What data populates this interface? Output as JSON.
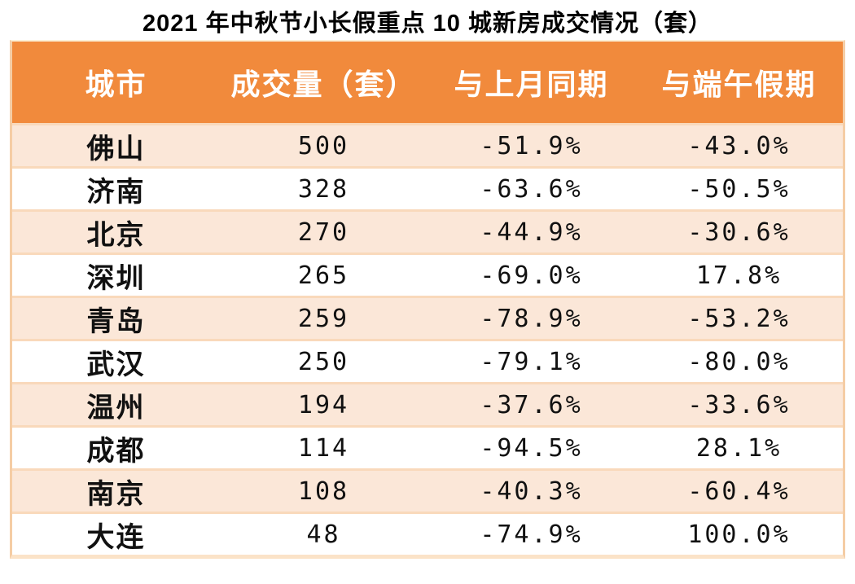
{
  "title": "2021 年中秋节小长假重点 10 城新房成交情况（套）",
  "table": {
    "columns": [
      "城市",
      "成交量（套）",
      "与上月同期",
      "与端午假期"
    ],
    "rows": [
      [
        "佛山",
        "500",
        "-51.9%",
        "-43.0%"
      ],
      [
        "济南",
        "328",
        "-63.6%",
        "-50.5%"
      ],
      [
        "北京",
        "270",
        "-44.9%",
        "-30.6%"
      ],
      [
        "深圳",
        "265",
        "-69.0%",
        "17.8%"
      ],
      [
        "青岛",
        "259",
        "-78.9%",
        "-53.2%"
      ],
      [
        "武汉",
        "250",
        "-79.1%",
        "-80.0%"
      ],
      [
        "温州",
        "194",
        "-37.6%",
        "-33.6%"
      ],
      [
        "成都",
        "114",
        "-94.5%",
        "28.1%"
      ],
      [
        "南京",
        "108",
        "-40.3%",
        "-60.4%"
      ],
      [
        "大连",
        "48",
        "-74.9%",
        "100.0%"
      ]
    ]
  },
  "chart_data": {
    "type": "table",
    "title": "2021 年中秋节小长假重点 10 城新房成交情况（套）",
    "columns": [
      "城市",
      "成交量（套）",
      "与上月同期",
      "与端午假期"
    ],
    "cities": [
      "佛山",
      "济南",
      "北京",
      "深圳",
      "青岛",
      "武汉",
      "温州",
      "成都",
      "南京",
      "大连"
    ],
    "volume_units": [
      500,
      328,
      270,
      265,
      259,
      250,
      194,
      114,
      108,
      48
    ],
    "vs_same_period_last_month_pct": [
      -51.9,
      -63.6,
      -44.9,
      -69.0,
      -78.9,
      -79.1,
      -37.6,
      -94.5,
      -40.3,
      -74.9
    ],
    "vs_dragon_boat_holiday_pct": [
      -43.0,
      -50.5,
      -30.6,
      17.8,
      -53.2,
      -80.0,
      -33.6,
      28.1,
      -60.4,
      100.0
    ]
  },
  "colors": {
    "header_bg": "#F18A3C",
    "header_text": "#FFFFFF",
    "row_alt_bg": "#FBE7D8",
    "row_bg": "#FFFFFF",
    "row_separator": "#F9D9BB",
    "grid_line": "#F5CDA5",
    "table_bottom_strip": "#FBE3C8",
    "table_top_strip": "#FCF0D8",
    "text_color": "#111111"
  }
}
